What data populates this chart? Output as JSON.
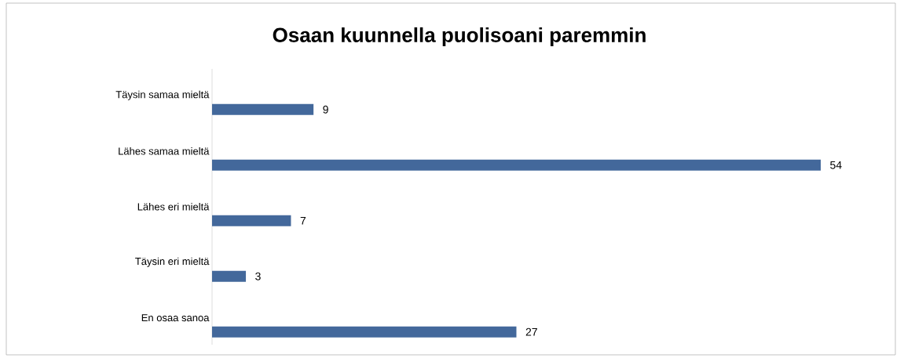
{
  "chart_data": {
    "type": "bar",
    "orientation": "horizontal",
    "title": "Osaan kuunnella puolisoani paremmin",
    "categories": [
      "Täysin samaa mieltä",
      "Lähes samaa mieltä",
      "Lähes eri mieltä",
      "Täysin eri mieltä",
      "En osaa sanoa"
    ],
    "values": [
      9,
      54,
      7,
      3,
      27
    ],
    "color": "#43689b",
    "data_labels": true
  }
}
